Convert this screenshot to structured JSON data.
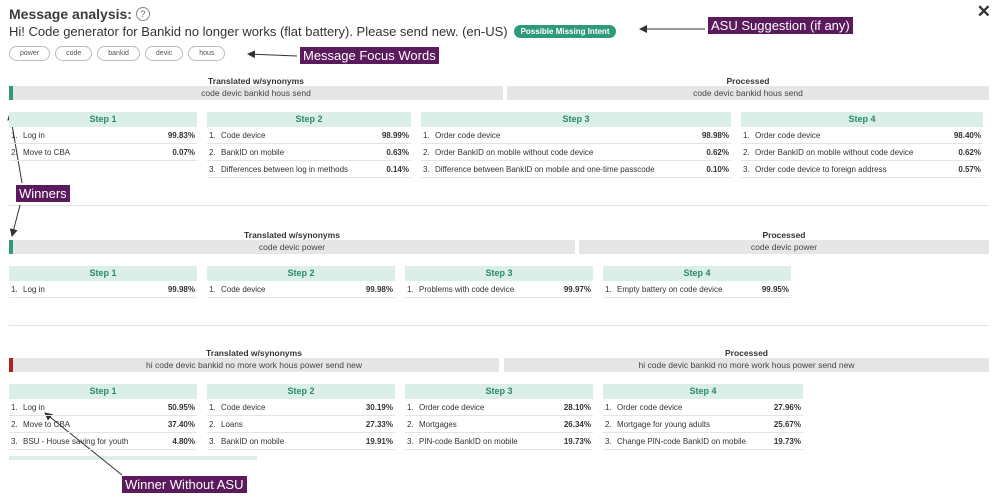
{
  "header": {
    "title": "Message analysis:",
    "help_glyph": "?",
    "close_glyph": "✕",
    "message": "Hi! Code generator for Bankid no longer works (flat battery). Please send new. (en-US)",
    "badge": "Possible Missing Intent"
  },
  "focus_words": [
    "power",
    "code",
    "bankid",
    "devic",
    "hous"
  ],
  "annotations": {
    "asu": "ASU Suggestion (if any)",
    "focus": "Message Focus Words",
    "winners": "Winners",
    "winner_without_asu": "Winner Without ASU"
  },
  "colors": {
    "accent": "#2f9a7a",
    "step_bg": "#dceee8",
    "winner": "#2f9a7a",
    "loser": "#b32020",
    "annotation": "#5a1a5c"
  },
  "sections": [
    {
      "translated_label": "Translated w/synonyms",
      "translated_text": "code devic bankid hous send",
      "processed_label": "Processed",
      "processed_text": "code devic bankid hous send",
      "status": "winner",
      "steps": [
        {
          "label": "Step 1",
          "rows": [
            {
              "n": "1.",
              "label": "Log in",
              "pct": "99.83%"
            },
            {
              "n": "2.",
              "label": "Move to CBA",
              "pct": "0.07%"
            }
          ]
        },
        {
          "label": "Step 2",
          "rows": [
            {
              "n": "1.",
              "label": "Code device",
              "pct": "98.99%"
            },
            {
              "n": "2.",
              "label": "BankID on mobile",
              "pct": "0.63%"
            },
            {
              "n": "3.",
              "label": "Differences between log in methods",
              "pct": "0.14%"
            }
          ]
        },
        {
          "label": "Step 3",
          "rows": [
            {
              "n": "1.",
              "label": "Order code device",
              "pct": "98.98%"
            },
            {
              "n": "2.",
              "label": "Order BankID on mobile without code device",
              "pct": "0.62%"
            },
            {
              "n": "3.",
              "label": "Difference between BankID on mobile and one-time passcode",
              "pct": "0.10%"
            }
          ]
        },
        {
          "label": "Step 4",
          "rows": [
            {
              "n": "1.",
              "label": "Order code device",
              "pct": "98.40%"
            },
            {
              "n": "2.",
              "label": "Order BankID on mobile without code device",
              "pct": "0.62%"
            },
            {
              "n": "3.",
              "label": "Order code device to foreign address",
              "pct": "0.57%"
            }
          ]
        }
      ]
    },
    {
      "translated_label": "Translated w/synonyms",
      "translated_text": "code devic power",
      "processed_label": "Processed",
      "processed_text": "code devic power",
      "status": "winner",
      "steps": [
        {
          "label": "Step 1",
          "rows": [
            {
              "n": "1.",
              "label": "Log in",
              "pct": "99.98%"
            }
          ]
        },
        {
          "label": "Step 2",
          "rows": [
            {
              "n": "1.",
              "label": "Code device",
              "pct": "99.98%"
            }
          ]
        },
        {
          "label": "Step 3",
          "rows": [
            {
              "n": "1.",
              "label": "Problems with code device",
              "pct": "99.97%"
            }
          ]
        },
        {
          "label": "Step 4",
          "rows": [
            {
              "n": "1.",
              "label": "Empty battery on code device",
              "pct": "99.95%"
            }
          ]
        }
      ]
    },
    {
      "translated_label": "Translated w/synonyms",
      "translated_text": "hi code devic bankid no more work hous power send new",
      "processed_label": "Processed",
      "processed_text": "hi code devic bankid no more work hous power send new",
      "status": "loser",
      "steps": [
        {
          "label": "Step 1",
          "rows": [
            {
              "n": "1.",
              "label": "Log in",
              "pct": "50.95%"
            },
            {
              "n": "2.",
              "label": "Move to CBA",
              "pct": "37.40%"
            },
            {
              "n": "3.",
              "label": "BSU - House saving for youth",
              "pct": "4.80%"
            }
          ]
        },
        {
          "label": "Step 2",
          "rows": [
            {
              "n": "1.",
              "label": "Code device",
              "pct": "30.19%"
            },
            {
              "n": "2.",
              "label": "Loans",
              "pct": "27.33%"
            },
            {
              "n": "3.",
              "label": "BankID on mobile",
              "pct": "19.91%"
            }
          ]
        },
        {
          "label": "Step 3",
          "rows": [
            {
              "n": "1.",
              "label": "Order code device",
              "pct": "28.10%"
            },
            {
              "n": "2.",
              "label": "Mortgages",
              "pct": "26.34%"
            },
            {
              "n": "3.",
              "label": "PIN-code BankID on mobile",
              "pct": "19.73%"
            }
          ]
        },
        {
          "label": "Step 4",
          "rows": [
            {
              "n": "1.",
              "label": "Order code device",
              "pct": "27.96%"
            },
            {
              "n": "2.",
              "label": "Mortgage for young adults",
              "pct": "25.67%"
            },
            {
              "n": "3.",
              "label": "Change PIN-code BankID on mobile",
              "pct": "19.73%"
            }
          ]
        }
      ]
    }
  ]
}
